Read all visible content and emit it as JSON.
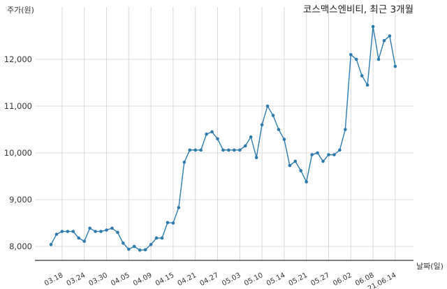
{
  "chart_data": {
    "type": "line",
    "title": "코스맥스엔비티, 최근 3개월",
    "xlabel": "날짜(일)",
    "ylabel": "주가(원)",
    "ylim": [
      7750,
      12950
    ],
    "yticks": [
      8000,
      9000,
      10000,
      11000,
      12000
    ],
    "ytick_labels": [
      "8,000",
      "9,000",
      "10,000",
      "11,000",
      "12,000"
    ],
    "xtick_labels": [
      "03.18",
      "03.24",
      "03.30",
      "04.05",
      "04.09",
      "04.15",
      "04.21",
      "04.27",
      "05.03",
      "05.10",
      "05.14",
      "05.21",
      "05.27",
      "06.02",
      "06.08",
      "21.06.14"
    ],
    "xtick_index": [
      2,
      6,
      10,
      14,
      18,
      22,
      26,
      30,
      34,
      38,
      42,
      46,
      50,
      54,
      58,
      62
    ],
    "grid": true,
    "color": "#2b7bb0",
    "series": [
      {
        "values": [
          8040,
          8260,
          8320,
          8320,
          8320,
          8180,
          8110,
          8390,
          8320,
          8320,
          8350,
          8390,
          8300,
          8070,
          7940,
          8000,
          7920,
          7930,
          8040,
          8180,
          8180,
          8510,
          8500,
          8830,
          9800,
          10060,
          10060,
          10060,
          10400,
          10450,
          10300,
          10060,
          10060,
          10060,
          10060,
          10150,
          10340,
          9900,
          10600,
          11000,
          10800,
          10500,
          10290,
          9730,
          9820,
          9620,
          9380,
          9960,
          10000,
          9820,
          9960,
          9960,
          10060,
          10500,
          12100,
          12000,
          11650,
          11450,
          12700,
          12000,
          12400,
          12500,
          11850
        ]
      }
    ]
  }
}
